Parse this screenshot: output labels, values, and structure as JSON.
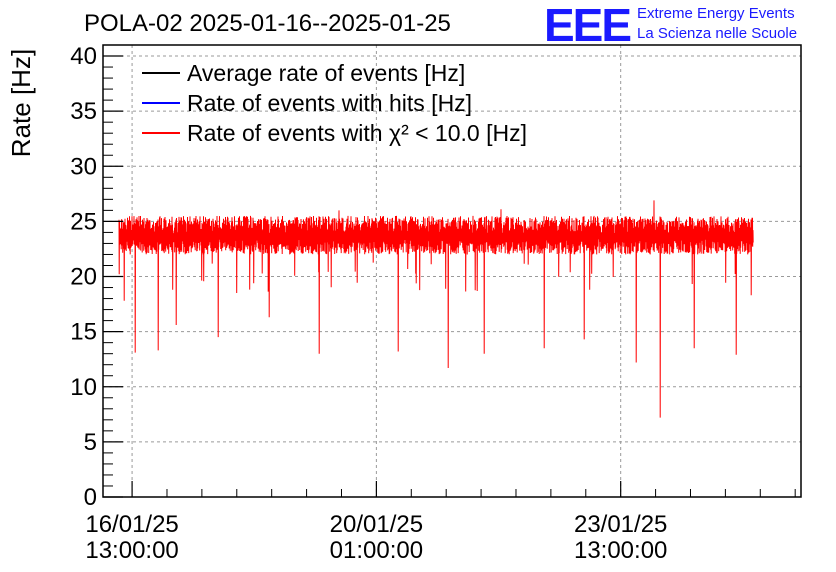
{
  "header": {
    "title": "POLA-02 2025-01-16--2025-01-25",
    "logo": "EEE",
    "logo_line1": "Extreme Energy Events",
    "logo_line2": "La Scienza nelle Scuole"
  },
  "colors": {
    "average": "#000000",
    "hits": "#0000ff",
    "chi2": "#ff0000",
    "logo": "#1a1aff"
  },
  "chart_data": {
    "type": "line",
    "ylabel": "Rate [Hz]",
    "ylim": [
      0,
      41
    ],
    "yticks": [
      0,
      5,
      10,
      15,
      20,
      25,
      30,
      35,
      40
    ],
    "grid": true,
    "legend_position": "top-left",
    "xlim": [
      "2025-01-16T03:00:00",
      "2025-01-26T03:00:00"
    ],
    "xticks": [
      {
        "date": "16/01/25",
        "time": "13:00:00",
        "t": "2025-01-16T13:00:00"
      },
      {
        "date": "20/01/25",
        "time": "01:00:00",
        "t": "2025-01-20T01:00:00"
      },
      {
        "date": "23/01/25",
        "time": "13:00:00",
        "t": "2025-01-23T13:00:00"
      }
    ],
    "series": [
      {
        "name": "Average rate of events [Hz]",
        "color": "#000000",
        "values": []
      },
      {
        "name": "Rate of events with hits [Hz]",
        "color": "#0000ff",
        "values": []
      },
      {
        "name": "Rate of events with χ² < 10.0 [Hz]",
        "color": "#ff0000",
        "baseline": 23.8,
        "noise_range": [
          22.0,
          25.5
        ],
        "x_start": "2025-01-16T08:30:00",
        "x_end": "2025-01-25T10:30:00",
        "dips": [
          {
            "t": "2025-01-16T08:40:00",
            "y": 20.2
          },
          {
            "t": "2025-01-16T10:20:00",
            "y": 17.8
          },
          {
            "t": "2025-01-16T14:10:00",
            "y": 13.1
          },
          {
            "t": "2025-01-16T21:50:00",
            "y": 13.3
          },
          {
            "t": "2025-01-17T04:00:00",
            "y": 15.6
          },
          {
            "t": "2025-01-17T18:30:00",
            "y": 14.5
          },
          {
            "t": "2025-01-18T12:00:00",
            "y": 16.3
          },
          {
            "t": "2025-01-19T05:10:00",
            "y": 13.0
          },
          {
            "t": "2025-01-20T08:30:00",
            "y": 13.2
          },
          {
            "t": "2025-01-21T01:40:00",
            "y": 11.7
          },
          {
            "t": "2025-01-21T14:00:00",
            "y": 13.0
          },
          {
            "t": "2025-01-22T10:30:00",
            "y": 13.5
          },
          {
            "t": "2025-01-23T00:30:00",
            "y": 14.3
          },
          {
            "t": "2025-01-23T18:10:00",
            "y": 12.2
          },
          {
            "t": "2025-01-24T02:40:00",
            "y": 7.2
          },
          {
            "t": "2025-01-24T14:20:00",
            "y": 13.5
          },
          {
            "t": "2025-01-25T04:30:00",
            "y": 12.9
          },
          {
            "t": "2025-01-25T09:50:00",
            "y": 18.3
          }
        ],
        "peaks": [
          {
            "t": "2025-01-24T00:30:00",
            "y": 26.9
          },
          {
            "t": "2025-01-21T20:00:00",
            "y": 26.1
          },
          {
            "t": "2025-01-19T12:00:00",
            "y": 26.0
          }
        ]
      }
    ]
  }
}
